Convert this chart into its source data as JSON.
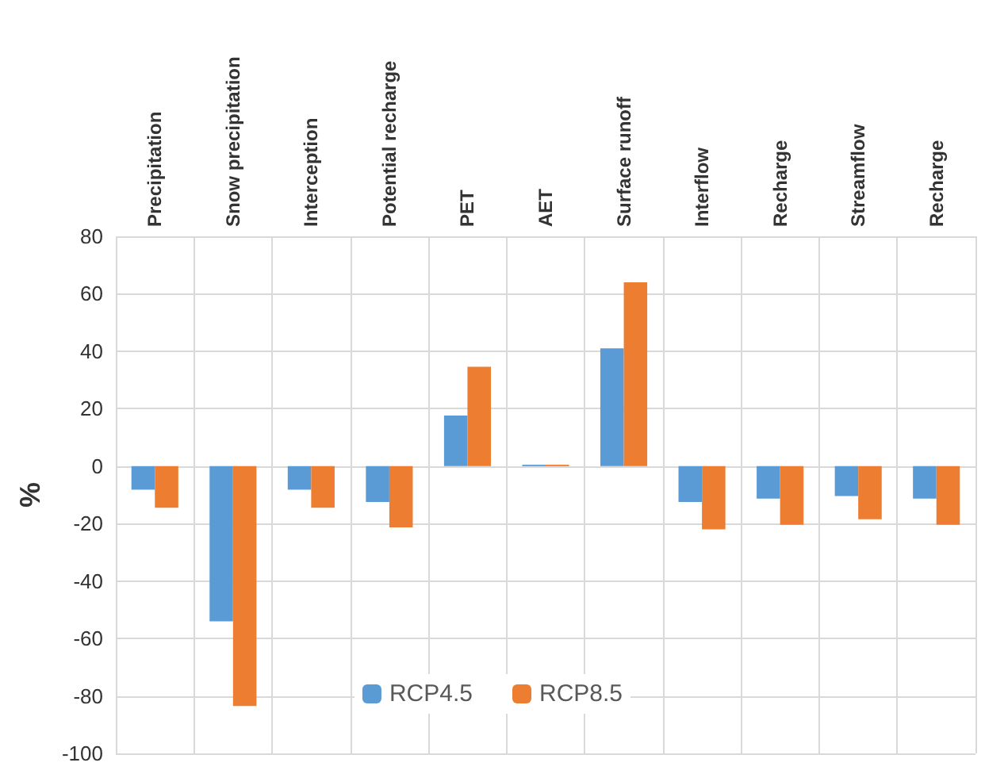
{
  "chart_data": {
    "type": "bar",
    "ylabel": "%",
    "categories": [
      "Precipitation",
      "Snow precipitation",
      "Interception",
      "Potential recharge",
      "PET",
      "AET",
      "Surface runoff",
      "Interflow",
      "Recharge",
      "Streamflow",
      "Recharge"
    ],
    "series": [
      {
        "name": "RCP4.5",
        "color": "#5b9bd5",
        "values": [
          -8.2,
          -54,
          -8.2,
          -12.5,
          17.6,
          0.5,
          41,
          -12.5,
          -11.3,
          -10.4,
          -11.3
        ]
      },
      {
        "name": "RCP8.5",
        "color": "#ed7d31",
        "values": [
          -14.5,
          -83.5,
          -14.5,
          -21.3,
          34.6,
          0.5,
          64,
          -22,
          -20.4,
          -18.5,
          -20.4
        ]
      }
    ],
    "ylim": [
      -100,
      80
    ],
    "yticks": [
      -100,
      -80,
      -60,
      -40,
      -20,
      0,
      20,
      40,
      60,
      80
    ],
    "grid": true,
    "legend": "bottom"
  }
}
